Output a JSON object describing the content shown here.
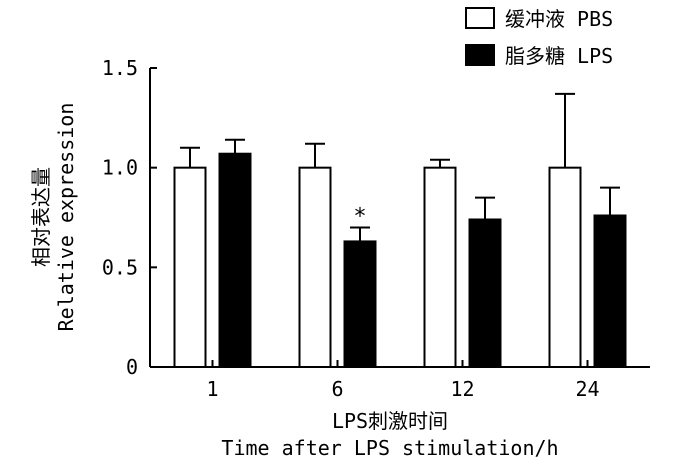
{
  "chart_data": {
    "type": "bar",
    "categories": [
      "1",
      "6",
      "12",
      "24"
    ],
    "xlabel": [
      "LPS刺激时间",
      "Time after LPS stimulation/h"
    ],
    "ylabel": [
      "相对表达量",
      "Relative expression"
    ],
    "ylim": [
      0,
      1.5
    ],
    "yticks": [
      0,
      0.5,
      1.0,
      1.5
    ],
    "ytick_labels": [
      "0",
      "0.5",
      "1.0",
      "1.5"
    ],
    "grid": false,
    "legend_position": "top-right",
    "series": [
      {
        "name": "缓冲液 PBS",
        "fill": "#ffffff",
        "stroke": "#000000",
        "values": [
          1.0,
          1.0,
          1.0,
          1.0
        ],
        "errors": [
          0.1,
          0.12,
          0.04,
          0.37
        ]
      },
      {
        "name": "脂多糖 LPS",
        "fill": "#000000",
        "stroke": "#000000",
        "values": [
          1.07,
          0.63,
          0.74,
          0.76
        ],
        "errors": [
          0.07,
          0.07,
          0.11,
          0.14
        ]
      }
    ],
    "annotations": [
      {
        "category": "6",
        "series": 1,
        "text": "*"
      }
    ]
  }
}
